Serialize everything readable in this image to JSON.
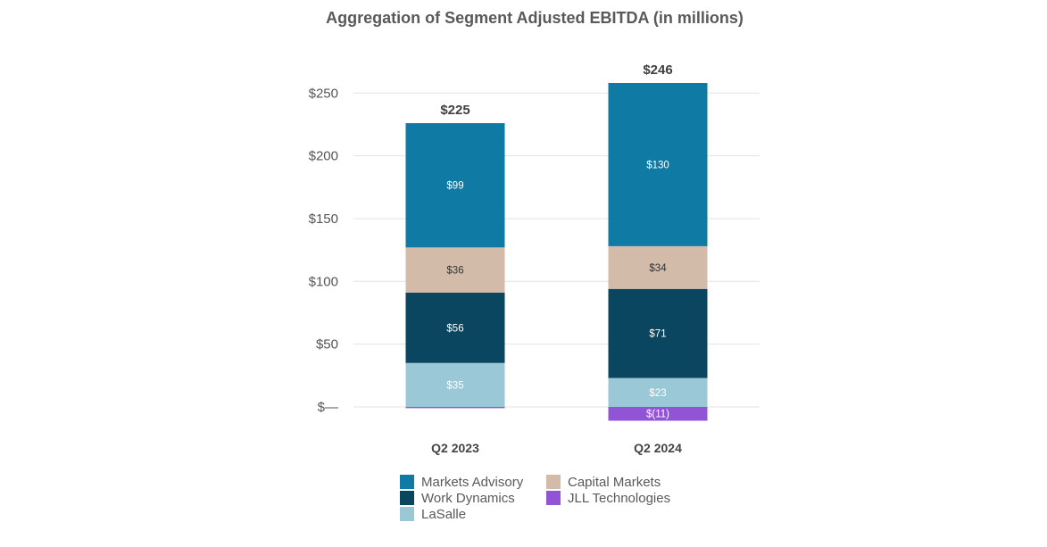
{
  "chart_data": {
    "type": "bar",
    "stacked": true,
    "title": "Aggregation of Segment Adjusted EBITDA (in millions)",
    "xlabel": "",
    "ylabel": "",
    "ylim": [
      -15,
      270
    ],
    "yticks": [
      0,
      50,
      100,
      150,
      200,
      250
    ],
    "ytick_labels": [
      "$—",
      "$50",
      "$100",
      "$150",
      "$200",
      "$250"
    ],
    "grid": true,
    "legend_position": "bottom",
    "categories": [
      "Q2 2023",
      "Q2 2024"
    ],
    "totals": [
      225,
      246
    ],
    "total_labels": [
      "$225",
      "$246"
    ],
    "series": [
      {
        "name": "LaSalle",
        "color": "#9ac8d6",
        "text_color": "#ffffff",
        "values": [
          35,
          23
        ],
        "labels": [
          "$35",
          "$23"
        ]
      },
      {
        "name": "Work Dynamics",
        "color": "#0a4660",
        "text_color": "#ffffff",
        "values": [
          56,
          71
        ],
        "labels": [
          "$56",
          "$71"
        ]
      },
      {
        "name": "Capital Markets",
        "color": "#d3bba9",
        "text_color": "#333333",
        "values": [
          36,
          34
        ],
        "labels": [
          "$36",
          "$34"
        ]
      },
      {
        "name": "Markets Advisory",
        "color": "#0f7aa3",
        "text_color": "#ffffff",
        "values": [
          99,
          130
        ],
        "labels": [
          "$99",
          "$130"
        ]
      },
      {
        "name": "JLL Technologies",
        "color": "#9254d6",
        "text_color": "#ffffff",
        "values": [
          -1,
          -11
        ],
        "labels": [
          "",
          "$(11)"
        ]
      }
    ],
    "legend_order": [
      "Markets Advisory",
      "Capital Markets",
      "Work Dynamics",
      "JLL Technologies",
      "LaSalle"
    ]
  }
}
